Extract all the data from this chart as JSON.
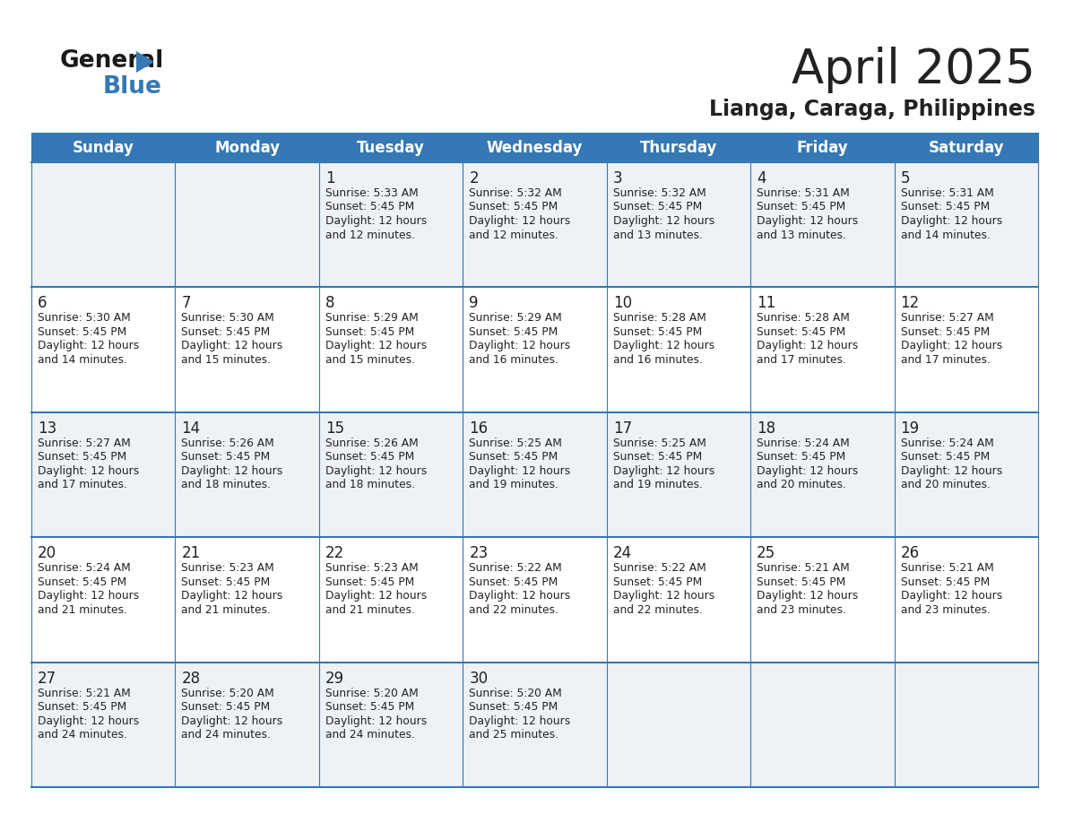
{
  "title": "April 2025",
  "subtitle": "Lianga, Caraga, Philippines",
  "header_color": "#3578b5",
  "header_text_color": "#ffffff",
  "background_color": "#ffffff",
  "cell_bg_light": "#edf2f7",
  "cell_bg_white": "#ffffff",
  "border_color": "#3578b5",
  "text_color": "#222222",
  "days_of_week": [
    "Sunday",
    "Monday",
    "Tuesday",
    "Wednesday",
    "Thursday",
    "Friday",
    "Saturday"
  ],
  "weeks": [
    [
      {
        "day": "",
        "info": ""
      },
      {
        "day": "",
        "info": ""
      },
      {
        "day": "1",
        "info": "Sunrise: 5:33 AM\nSunset: 5:45 PM\nDaylight: 12 hours\nand 12 minutes."
      },
      {
        "day": "2",
        "info": "Sunrise: 5:32 AM\nSunset: 5:45 PM\nDaylight: 12 hours\nand 12 minutes."
      },
      {
        "day": "3",
        "info": "Sunrise: 5:32 AM\nSunset: 5:45 PM\nDaylight: 12 hours\nand 13 minutes."
      },
      {
        "day": "4",
        "info": "Sunrise: 5:31 AM\nSunset: 5:45 PM\nDaylight: 12 hours\nand 13 minutes."
      },
      {
        "day": "5",
        "info": "Sunrise: 5:31 AM\nSunset: 5:45 PM\nDaylight: 12 hours\nand 14 minutes."
      }
    ],
    [
      {
        "day": "6",
        "info": "Sunrise: 5:30 AM\nSunset: 5:45 PM\nDaylight: 12 hours\nand 14 minutes."
      },
      {
        "day": "7",
        "info": "Sunrise: 5:30 AM\nSunset: 5:45 PM\nDaylight: 12 hours\nand 15 minutes."
      },
      {
        "day": "8",
        "info": "Sunrise: 5:29 AM\nSunset: 5:45 PM\nDaylight: 12 hours\nand 15 minutes."
      },
      {
        "day": "9",
        "info": "Sunrise: 5:29 AM\nSunset: 5:45 PM\nDaylight: 12 hours\nand 16 minutes."
      },
      {
        "day": "10",
        "info": "Sunrise: 5:28 AM\nSunset: 5:45 PM\nDaylight: 12 hours\nand 16 minutes."
      },
      {
        "day": "11",
        "info": "Sunrise: 5:28 AM\nSunset: 5:45 PM\nDaylight: 12 hours\nand 17 minutes."
      },
      {
        "day": "12",
        "info": "Sunrise: 5:27 AM\nSunset: 5:45 PM\nDaylight: 12 hours\nand 17 minutes."
      }
    ],
    [
      {
        "day": "13",
        "info": "Sunrise: 5:27 AM\nSunset: 5:45 PM\nDaylight: 12 hours\nand 17 minutes."
      },
      {
        "day": "14",
        "info": "Sunrise: 5:26 AM\nSunset: 5:45 PM\nDaylight: 12 hours\nand 18 minutes."
      },
      {
        "day": "15",
        "info": "Sunrise: 5:26 AM\nSunset: 5:45 PM\nDaylight: 12 hours\nand 18 minutes."
      },
      {
        "day": "16",
        "info": "Sunrise: 5:25 AM\nSunset: 5:45 PM\nDaylight: 12 hours\nand 19 minutes."
      },
      {
        "day": "17",
        "info": "Sunrise: 5:25 AM\nSunset: 5:45 PM\nDaylight: 12 hours\nand 19 minutes."
      },
      {
        "day": "18",
        "info": "Sunrise: 5:24 AM\nSunset: 5:45 PM\nDaylight: 12 hours\nand 20 minutes."
      },
      {
        "day": "19",
        "info": "Sunrise: 5:24 AM\nSunset: 5:45 PM\nDaylight: 12 hours\nand 20 minutes."
      }
    ],
    [
      {
        "day": "20",
        "info": "Sunrise: 5:24 AM\nSunset: 5:45 PM\nDaylight: 12 hours\nand 21 minutes."
      },
      {
        "day": "21",
        "info": "Sunrise: 5:23 AM\nSunset: 5:45 PM\nDaylight: 12 hours\nand 21 minutes."
      },
      {
        "day": "22",
        "info": "Sunrise: 5:23 AM\nSunset: 5:45 PM\nDaylight: 12 hours\nand 21 minutes."
      },
      {
        "day": "23",
        "info": "Sunrise: 5:22 AM\nSunset: 5:45 PM\nDaylight: 12 hours\nand 22 minutes."
      },
      {
        "day": "24",
        "info": "Sunrise: 5:22 AM\nSunset: 5:45 PM\nDaylight: 12 hours\nand 22 minutes."
      },
      {
        "day": "25",
        "info": "Sunrise: 5:21 AM\nSunset: 5:45 PM\nDaylight: 12 hours\nand 23 minutes."
      },
      {
        "day": "26",
        "info": "Sunrise: 5:21 AM\nSunset: 5:45 PM\nDaylight: 12 hours\nand 23 minutes."
      }
    ],
    [
      {
        "day": "27",
        "info": "Sunrise: 5:21 AM\nSunset: 5:45 PM\nDaylight: 12 hours\nand 24 minutes."
      },
      {
        "day": "28",
        "info": "Sunrise: 5:20 AM\nSunset: 5:45 PM\nDaylight: 12 hours\nand 24 minutes."
      },
      {
        "day": "29",
        "info": "Sunrise: 5:20 AM\nSunset: 5:45 PM\nDaylight: 12 hours\nand 24 minutes."
      },
      {
        "day": "30",
        "info": "Sunrise: 5:20 AM\nSunset: 5:45 PM\nDaylight: 12 hours\nand 25 minutes."
      },
      {
        "day": "",
        "info": ""
      },
      {
        "day": "",
        "info": ""
      },
      {
        "day": "",
        "info": ""
      }
    ]
  ],
  "logo_color_general": "#1a1a1a",
  "logo_color_blue": "#3578b5",
  "logo_color_triangle": "#3578b5"
}
